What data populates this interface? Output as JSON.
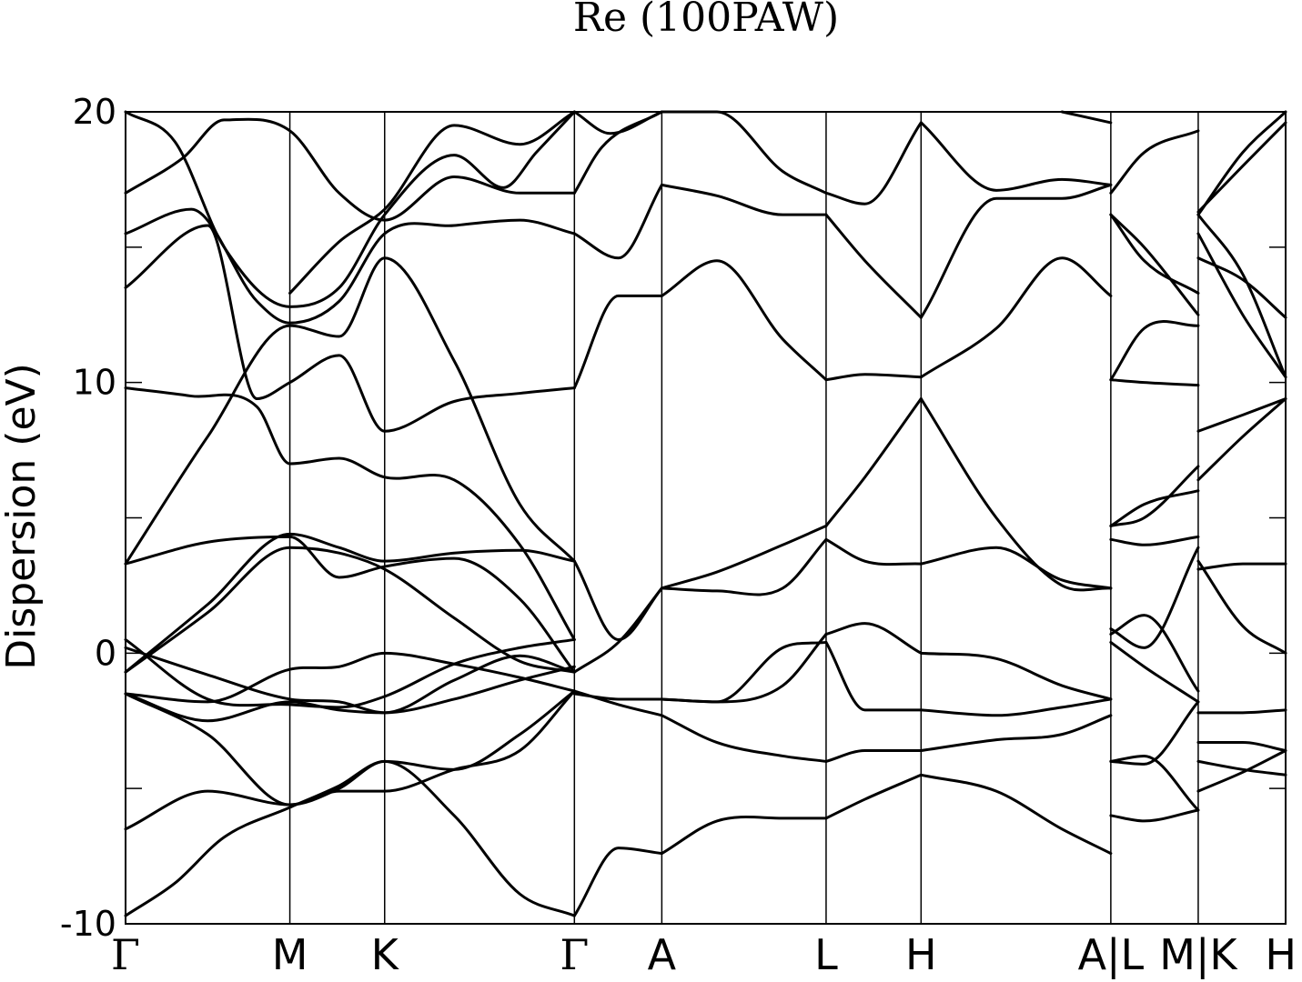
{
  "chart_data": {
    "type": "line",
    "title": "Re (100PAW)",
    "xlabel": "",
    "ylabel": "Dispersion (eV)",
    "ylim": [
      -10,
      20
    ],
    "yticks": [
      {
        "value": 20,
        "label": "20"
      },
      {
        "value": 10,
        "label": "10"
      },
      {
        "value": 0,
        "label": "0"
      },
      {
        "value": -10,
        "label": "-10"
      }
    ],
    "yminor_ticks": [
      15,
      5,
      -5
    ],
    "segment_boundaries": [
      0,
      1.0,
      1.577,
      2.732,
      3.264,
      4.264,
      4.842,
      5.997,
      6.529,
      7.061
    ],
    "xticks": [
      {
        "pos": 0,
        "label": "Γ",
        "greek": true
      },
      {
        "pos": 1.0,
        "label": "M",
        "greek": false
      },
      {
        "pos": 1.577,
        "label": "K",
        "greek": false
      },
      {
        "pos": 2.732,
        "label": "Γ",
        "greek": true
      },
      {
        "pos": 3.264,
        "label": "A",
        "greek": false
      },
      {
        "pos": 4.264,
        "label": "L",
        "greek": false
      },
      {
        "pos": 4.842,
        "label": "H",
        "greek": false
      },
      {
        "pos": 5.997,
        "label": "A|L",
        "greek": false
      },
      {
        "pos": 6.529,
        "label": "M|K",
        "greek": false
      },
      {
        "pos": 7.061,
        "label": "H",
        "greek": false
      }
    ],
    "xlim": [
      0,
      7.061
    ],
    "grid": false,
    "series": [
      {
        "x": [
          0,
          0.3,
          0.6,
          1.0,
          1.3,
          1.577,
          2.0,
          2.4,
          2.732
        ],
        "y": [
          -9.7,
          -8.5,
          -6.8,
          -5.7,
          -4.9,
          -4.0,
          -6.0,
          -8.9,
          -9.7
        ]
      },
      {
        "x": [
          0,
          0.5,
          1.0,
          1.3,
          1.577,
          2.0,
          2.4,
          2.732
        ],
        "y": [
          -6.5,
          -5.1,
          -5.6,
          -5.1,
          -5.1,
          -4.3,
          -3.6,
          -1.4
        ]
      },
      {
        "x": [
          0,
          0.5,
          1.0,
          1.3,
          1.577,
          2.0,
          2.4,
          2.732
        ],
        "y": [
          -1.5,
          -3.0,
          -5.6,
          -5.0,
          -4.0,
          -4.3,
          -3.0,
          -1.4
        ]
      },
      {
        "x": [
          0,
          0.5,
          1.0,
          1.3,
          1.577,
          2.0,
          2.4,
          2.732
        ],
        "y": [
          -1.5,
          -2.5,
          -1.8,
          -2.1,
          -2.2,
          -1.7,
          -1.0,
          -0.5
        ]
      },
      {
        "x": [
          0,
          0.5,
          1.0,
          1.3,
          1.577,
          2.0,
          2.4,
          2.732
        ],
        "y": [
          -1.5,
          -1.8,
          -0.6,
          -0.5,
          0.0,
          -0.4,
          -0.9,
          -1.4
        ]
      },
      {
        "x": [
          0,
          0.5,
          1.0,
          1.3,
          1.577,
          2.0,
          2.4,
          2.732
        ],
        "y": [
          0.2,
          -0.8,
          -1.7,
          -1.8,
          -2.2,
          -1.0,
          -0.1,
          -0.7
        ]
      },
      {
        "x": [
          0,
          0.5,
          1.0,
          1.3,
          1.577,
          2.0,
          2.4,
          2.732
        ],
        "y": [
          0.5,
          -1.7,
          -1.9,
          -2.0,
          -1.6,
          -0.4,
          0.2,
          0.5
        ]
      },
      {
        "x": [
          0,
          0.5,
          1.0,
          1.3,
          1.577,
          2.0,
          2.4,
          2.732
        ],
        "y": [
          -0.7,
          1.8,
          4.4,
          3.9,
          3.4,
          3.7,
          3.8,
          3.4
        ]
      },
      {
        "x": [
          0,
          0.5,
          1.0,
          1.3,
          1.577,
          2.0,
          2.4,
          2.732
        ],
        "y": [
          -0.7,
          1.5,
          3.9,
          3.7,
          3.1,
          1.3,
          -0.3,
          -0.7
        ]
      },
      {
        "x": [
          0,
          0.5,
          1.0,
          1.3,
          1.577,
          2.0,
          2.4,
          2.732
        ],
        "y": [
          3.3,
          4.1,
          4.3,
          2.8,
          3.2,
          3.5,
          2.0,
          -0.7
        ]
      },
      {
        "x": [
          0,
          0.5,
          1.0,
          1.3,
          1.577,
          2.0,
          2.4,
          2.732
        ],
        "y": [
          3.3,
          8.0,
          12.1,
          11.7,
          14.6,
          10.8,
          5.5,
          3.4
        ]
      },
      {
        "x": [
          0,
          0.4,
          0.8,
          1.0,
          1.3,
          1.577,
          2.0,
          2.4,
          2.732
        ],
        "y": [
          9.8,
          9.5,
          9.1,
          7.0,
          7.2,
          6.5,
          6.4,
          4.0,
          0.5
        ]
      },
      {
        "x": [
          0,
          0.5,
          0.8,
          1.0,
          1.3,
          1.577,
          2.0,
          2.4,
          2.732
        ],
        "y": [
          13.5,
          15.8,
          9.4,
          10.0,
          11.0,
          8.2,
          9.3,
          9.6,
          9.8
        ]
      },
      {
        "x": [
          0,
          0.4,
          0.8,
          1.0,
          1.3,
          1.577,
          2.0,
          2.4,
          2.732
        ],
        "y": [
          15.5,
          16.4,
          13.0,
          12.2,
          13.0,
          15.5,
          15.8,
          16.0,
          15.5
        ]
      },
      {
        "x": [
          0,
          0.35,
          0.6,
          1.0,
          1.3,
          1.577,
          2.0,
          2.4,
          2.732
        ],
        "y": [
          17.0,
          18.3,
          19.7,
          19.3,
          17.0,
          16.0,
          17.6,
          17.0,
          17.0
        ]
      },
      {
        "x": [
          0,
          0.3,
          0.6,
          1.0,
          1.3,
          1.577,
          2.0,
          2.3,
          2.5,
          2.732
        ],
        "y": [
          20.0,
          18.9,
          15.0,
          12.8,
          13.5,
          16.2,
          18.4,
          17.2,
          18.5,
          20.0
        ]
      },
      {
        "x": [
          1.0,
          1.3,
          1.577,
          2.0,
          2.4,
          2.732
        ],
        "y": [
          13.3,
          15.2,
          16.4,
          19.5,
          18.8,
          20.0
        ]
      },
      {
        "x": [
          2.732,
          3.0,
          3.264
        ],
        "y": [
          -1.5,
          -1.7,
          -1.7
        ]
      },
      {
        "x": [
          2.732,
          3.0,
          3.264
        ],
        "y": [
          -1.4,
          -1.9,
          -2.3
        ]
      },
      {
        "x": [
          2.732,
          3.0,
          3.264
        ],
        "y": [
          3.4,
          0.5,
          2.4
        ]
      },
      {
        "x": [
          2.732,
          3.0,
          3.264
        ],
        "y": [
          -0.7,
          0.4,
          2.4
        ]
      },
      {
        "x": [
          2.732,
          3.0,
          3.264
        ],
        "y": [
          -9.7,
          -7.2,
          -7.4
        ]
      },
      {
        "x": [
          2.732,
          3.0,
          3.264
        ],
        "y": [
          9.8,
          13.2,
          13.2
        ]
      },
      {
        "x": [
          2.732,
          3.0,
          3.264
        ],
        "y": [
          15.5,
          14.6,
          17.3
        ]
      },
      {
        "x": [
          2.732,
          2.9,
          3.264
        ],
        "y": [
          17.0,
          18.7,
          20.0
        ]
      },
      {
        "x": [
          2.732,
          2.95,
          3.264
        ],
        "y": [
          20.0,
          19.2,
          20.0
        ]
      },
      {
        "x": [
          3.264,
          3.6,
          4.0,
          4.264
        ],
        "y": [
          -7.4,
          -6.2,
          -6.1,
          -6.1
        ]
      },
      {
        "x": [
          3.264,
          3.6,
          4.0,
          4.264
        ],
        "y": [
          -2.3,
          -3.3,
          -3.8,
          -4.0
        ]
      },
      {
        "x": [
          3.264,
          3.6,
          4.0,
          4.264
        ],
        "y": [
          -1.7,
          -1.8,
          0.2,
          0.4
        ]
      },
      {
        "x": [
          3.264,
          3.6,
          4.0,
          4.264
        ],
        "y": [
          -1.7,
          -1.8,
          -1.2,
          0.7
        ]
      },
      {
        "x": [
          3.264,
          3.6,
          4.0,
          4.264
        ],
        "y": [
          2.4,
          2.3,
          2.4,
          4.2
        ]
      },
      {
        "x": [
          3.264,
          3.6,
          4.0,
          4.264
        ],
        "y": [
          2.4,
          3.0,
          4.0,
          4.7
        ]
      },
      {
        "x": [
          3.264,
          3.6,
          4.0,
          4.264
        ],
        "y": [
          13.2,
          14.5,
          11.6,
          10.1
        ]
      },
      {
        "x": [
          3.264,
          3.6,
          4.0,
          4.264
        ],
        "y": [
          17.3,
          16.9,
          16.2,
          16.2
        ]
      },
      {
        "x": [
          3.264,
          3.6,
          4.0,
          4.264
        ],
        "y": [
          20.0,
          20.0,
          17.8,
          17.0
        ]
      },
      {
        "x": [
          4.264,
          4.5,
          4.842
        ],
        "y": [
          -6.1,
          -5.4,
          -4.5
        ]
      },
      {
        "x": [
          4.264,
          4.5,
          4.842
        ],
        "y": [
          -4.0,
          -3.6,
          -3.6
        ]
      },
      {
        "x": [
          4.264,
          4.5,
          4.842
        ],
        "y": [
          0.4,
          -2.1,
          -2.1
        ]
      },
      {
        "x": [
          4.264,
          4.5,
          4.842
        ],
        "y": [
          0.7,
          1.1,
          0.0
        ]
      },
      {
        "x": [
          4.264,
          4.5,
          4.842
        ],
        "y": [
          4.2,
          3.4,
          3.3
        ]
      },
      {
        "x": [
          4.264,
          4.5,
          4.842
        ],
        "y": [
          4.7,
          6.5,
          9.4
        ]
      },
      {
        "x": [
          4.264,
          4.5,
          4.842
        ],
        "y": [
          10.1,
          10.3,
          10.2
        ]
      },
      {
        "x": [
          4.264,
          4.5,
          4.842
        ],
        "y": [
          16.2,
          14.5,
          12.4
        ]
      },
      {
        "x": [
          4.264,
          4.5,
          4.842
        ],
        "y": [
          17.0,
          16.6,
          19.6
        ]
      },
      {
        "x": [
          4.842,
          5.3,
          5.7,
          5.997
        ],
        "y": [
          -4.5,
          -5.1,
          -6.5,
          -7.4
        ]
      },
      {
        "x": [
          4.842,
          5.3,
          5.7,
          5.997
        ],
        "y": [
          -3.6,
          -3.2,
          -3.0,
          -2.3
        ]
      },
      {
        "x": [
          4.842,
          5.3,
          5.7,
          5.997
        ],
        "y": [
          -2.1,
          -2.3,
          -2.0,
          -1.7
        ]
      },
      {
        "x": [
          4.842,
          5.3,
          5.7,
          5.997
        ],
        "y": [
          0.0,
          -0.2,
          -1.2,
          -1.7
        ]
      },
      {
        "x": [
          4.842,
          5.3,
          5.7,
          5.997
        ],
        "y": [
          3.3,
          3.9,
          2.7,
          2.4
        ]
      },
      {
        "x": [
          4.842,
          5.3,
          5.7,
          5.997
        ],
        "y": [
          9.4,
          5.0,
          2.5,
          2.4
        ]
      },
      {
        "x": [
          4.842,
          5.3,
          5.7,
          5.997
        ],
        "y": [
          10.2,
          12.0,
          14.6,
          13.2
        ]
      },
      {
        "x": [
          4.842,
          5.3,
          5.7,
          5.997
        ],
        "y": [
          12.4,
          16.8,
          16.8,
          17.3
        ]
      },
      {
        "x": [
          4.842,
          5.3,
          5.7,
          5.997
        ],
        "y": [
          19.6,
          17.1,
          17.5,
          17.3
        ]
      },
      {
        "x": [
          5.7,
          5.997
        ],
        "y": [
          20.0,
          19.6
        ]
      },
      {
        "x": [
          5.997,
          6.2,
          6.529
        ],
        "y": [
          -6.0,
          -6.2,
          -5.8
        ]
      },
      {
        "x": [
          5.997,
          6.2,
          6.529
        ],
        "y": [
          -4.0,
          -3.8,
          -5.8
        ]
      },
      {
        "x": [
          5.997,
          6.2,
          6.529
        ],
        "y": [
          -4.0,
          -4.1,
          -1.8
        ]
      },
      {
        "x": [
          5.997,
          6.2,
          6.529
        ],
        "y": [
          0.4,
          -0.5,
          -1.8
        ]
      },
      {
        "x": [
          5.997,
          6.2,
          6.529
        ],
        "y": [
          0.7,
          1.4,
          -1.4
        ]
      },
      {
        "x": [
          5.997,
          6.2,
          6.529
        ],
        "y": [
          0.9,
          0.2,
          3.9
        ]
      },
      {
        "x": [
          5.997,
          6.2,
          6.529
        ],
        "y": [
          4.2,
          4.0,
          4.3
        ]
      },
      {
        "x": [
          5.997,
          6.2,
          6.529
        ],
        "y": [
          4.7,
          5.5,
          6.0
        ]
      },
      {
        "x": [
          5.997,
          6.2,
          6.529
        ],
        "y": [
          4.7,
          5.0,
          6.9
        ]
      },
      {
        "x": [
          5.997,
          6.2,
          6.529
        ],
        "y": [
          10.1,
          10.0,
          9.9
        ]
      },
      {
        "x": [
          5.997,
          6.2,
          6.529
        ],
        "y": [
          10.1,
          12.0,
          12.1
        ]
      },
      {
        "x": [
          5.997,
          6.2,
          6.529
        ],
        "y": [
          16.2,
          14.5,
          13.3
        ]
      },
      {
        "x": [
          5.997,
          6.2,
          6.529
        ],
        "y": [
          16.2,
          15.0,
          12.5
        ]
      },
      {
        "x": [
          5.997,
          6.2,
          6.529
        ],
        "y": [
          17.0,
          18.5,
          19.3
        ]
      },
      {
        "x": [
          6.529,
          6.8,
          7.061
        ],
        "y": [
          -5.1,
          -4.4,
          -3.6
        ]
      },
      {
        "x": [
          6.529,
          6.8,
          7.061
        ],
        "y": [
          -4.0,
          -4.3,
          -4.5
        ]
      },
      {
        "x": [
          6.529,
          6.8,
          7.061
        ],
        "y": [
          -3.3,
          -3.3,
          -3.6
        ]
      },
      {
        "x": [
          6.529,
          6.8,
          7.061
        ],
        "y": [
          -2.2,
          -2.2,
          -2.1
        ]
      },
      {
        "x": [
          6.529,
          6.8,
          7.061
        ],
        "y": [
          3.4,
          1.0,
          0.0
        ]
      },
      {
        "x": [
          6.529,
          6.8,
          7.061
        ],
        "y": [
          3.1,
          3.3,
          3.3
        ]
      },
      {
        "x": [
          6.529,
          6.8,
          7.061
        ],
        "y": [
          6.4,
          8.0,
          9.4
        ]
      },
      {
        "x": [
          6.529,
          6.8,
          7.061
        ],
        "y": [
          8.2,
          8.8,
          9.4
        ]
      },
      {
        "x": [
          6.529,
          6.8,
          7.061
        ],
        "y": [
          14.6,
          13.8,
          12.4
        ]
      },
      {
        "x": [
          6.529,
          6.8,
          7.061
        ],
        "y": [
          15.5,
          12.5,
          10.2
        ]
      },
      {
        "x": [
          6.529,
          6.8,
          7.061
        ],
        "y": [
          16.2,
          14.0,
          10.2
        ]
      },
      {
        "x": [
          6.529,
          6.8,
          7.061
        ],
        "y": [
          16.3,
          18.0,
          19.6
        ]
      },
      {
        "x": [
          6.529,
          6.8,
          7.061
        ],
        "y": [
          16.2,
          18.5,
          20.0
        ]
      }
    ]
  }
}
